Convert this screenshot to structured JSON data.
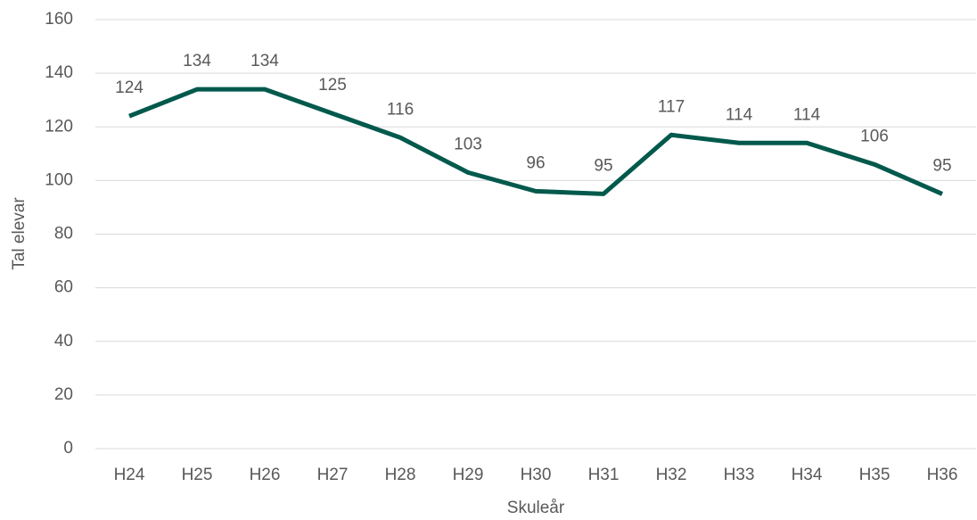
{
  "chart_data": {
    "type": "line",
    "x_label": "Skuleår",
    "y_label": "Tal elevar",
    "categories": [
      "H24",
      "H25",
      "H26",
      "H27",
      "H28",
      "H29",
      "H30",
      "H31",
      "H32",
      "H33",
      "H34",
      "H35",
      "H36"
    ],
    "values": [
      124,
      134,
      134,
      125,
      116,
      103,
      96,
      95,
      117,
      114,
      114,
      106,
      95
    ],
    "color": "#00594c",
    "ylim": [
      0,
      160
    ],
    "yticks": [
      0,
      20,
      40,
      60,
      80,
      100,
      120,
      140,
      160
    ],
    "grid": true
  }
}
